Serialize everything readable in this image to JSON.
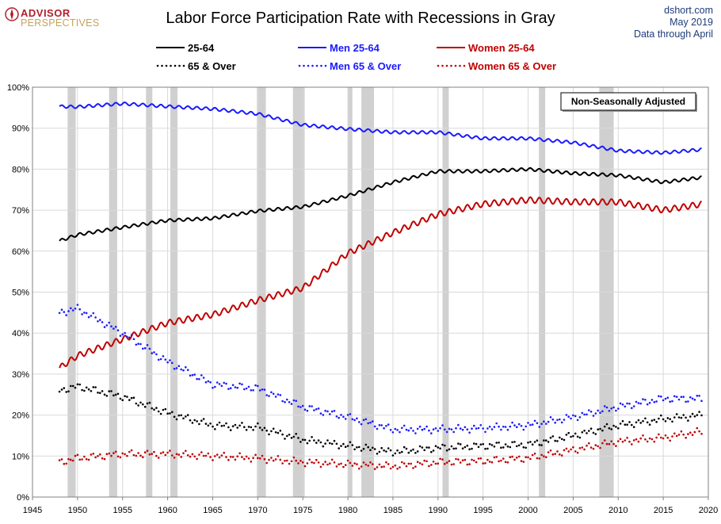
{
  "header": {
    "brand_top": "ADVISOR",
    "brand_bottom": "PERSPECTIVES",
    "source_site": "dshort.com",
    "source_date": "May 2019",
    "source_note": "Data through April"
  },
  "colors": {
    "all": "#000000",
    "men": "#1a1aff",
    "women": "#c00000",
    "recession": "#d0d0d0",
    "grid": "#d9d9d9",
    "brand_red": "#b11e2b",
    "brand_gold": "#c7a25a",
    "source_blue": "#1f3b7a"
  },
  "chart_data": {
    "type": "line",
    "title": "Labor Force Participation Rate with Recessions in Gray",
    "annotation": "Non-Seasonally Adjusted",
    "xlim": [
      1945,
      2020
    ],
    "ylim": [
      0,
      100
    ],
    "x_ticks": [
      1945,
      1950,
      1955,
      1960,
      1965,
      1970,
      1975,
      1980,
      1985,
      1990,
      1995,
      2000,
      2005,
      2010,
      2015,
      2020
    ],
    "y_ticks": [
      0,
      10,
      20,
      30,
      40,
      50,
      60,
      70,
      80,
      90,
      100
    ],
    "y_tick_labels": [
      "0%",
      "10%",
      "20%",
      "30%",
      "40%",
      "50%",
      "60%",
      "70%",
      "80%",
      "90%",
      "100%"
    ],
    "grid": true,
    "legend_position": "top, two rows of three",
    "recessions": [
      [
        1948.9,
        1949.8
      ],
      [
        1953.5,
        1954.4
      ],
      [
        1957.6,
        1958.3
      ],
      [
        1960.3,
        1961.1
      ],
      [
        1969.9,
        1970.9
      ],
      [
        1973.9,
        1975.2
      ],
      [
        1980.0,
        1980.5
      ],
      [
        1981.5,
        1982.9
      ],
      [
        1990.5,
        1991.2
      ],
      [
        2001.2,
        2001.9
      ],
      [
        2007.9,
        2009.5
      ]
    ],
    "x": [
      1948,
      1950,
      1955,
      1960,
      1965,
      1970,
      1975,
      1980,
      1985,
      1990,
      1995,
      2000,
      2005,
      2010,
      2015,
      2019.3
    ],
    "series": [
      {
        "name": "25-64",
        "style": "solid",
        "color": "#000000",
        "values": [
          62.5,
          64.0,
          65.8,
          67.5,
          68.0,
          69.8,
          70.8,
          73.5,
          76.8,
          79.5,
          79.5,
          80.0,
          79.0,
          78.5,
          76.8,
          78.0
        ]
      },
      {
        "name": "Men 25-64",
        "style": "solid",
        "color": "#1a1aff",
        "values": [
          95.3,
          95.2,
          96.0,
          95.3,
          94.7,
          93.5,
          90.8,
          89.8,
          89.0,
          89.0,
          87.5,
          87.5,
          86.5,
          84.5,
          84.0,
          84.8
        ]
      },
      {
        "name": "Women 25-64",
        "style": "solid",
        "color": "#c00000",
        "values": [
          31.5,
          34.5,
          38.5,
          42.5,
          44.5,
          48.0,
          51.0,
          59.5,
          64.5,
          69.0,
          71.5,
          72.5,
          72.0,
          72.0,
          70.0,
          71.5
        ]
      },
      {
        "name": "65 & Over",
        "style": "dotted",
        "color": "#000000",
        "values": [
          26.0,
          27.0,
          24.5,
          20.5,
          17.5,
          17.0,
          14.0,
          12.5,
          11.0,
          12.0,
          12.5,
          12.8,
          15.0,
          17.5,
          19.0,
          20.0
        ]
      },
      {
        "name": "Men 65 & Over",
        "style": "dotted",
        "color": "#1a1aff",
        "values": [
          45.0,
          46.0,
          40.0,
          33.0,
          27.5,
          26.5,
          22.0,
          19.5,
          16.5,
          16.5,
          16.8,
          17.5,
          19.5,
          22.0,
          24.0,
          24.0
        ]
      },
      {
        "name": "Women 65 & Over",
        "style": "dotted",
        "color": "#c00000",
        "values": [
          8.5,
          9.5,
          10.5,
          10.5,
          10.0,
          9.5,
          8.5,
          8.0,
          7.5,
          8.5,
          8.8,
          9.5,
          11.5,
          13.5,
          14.5,
          16.0
        ]
      }
    ]
  }
}
